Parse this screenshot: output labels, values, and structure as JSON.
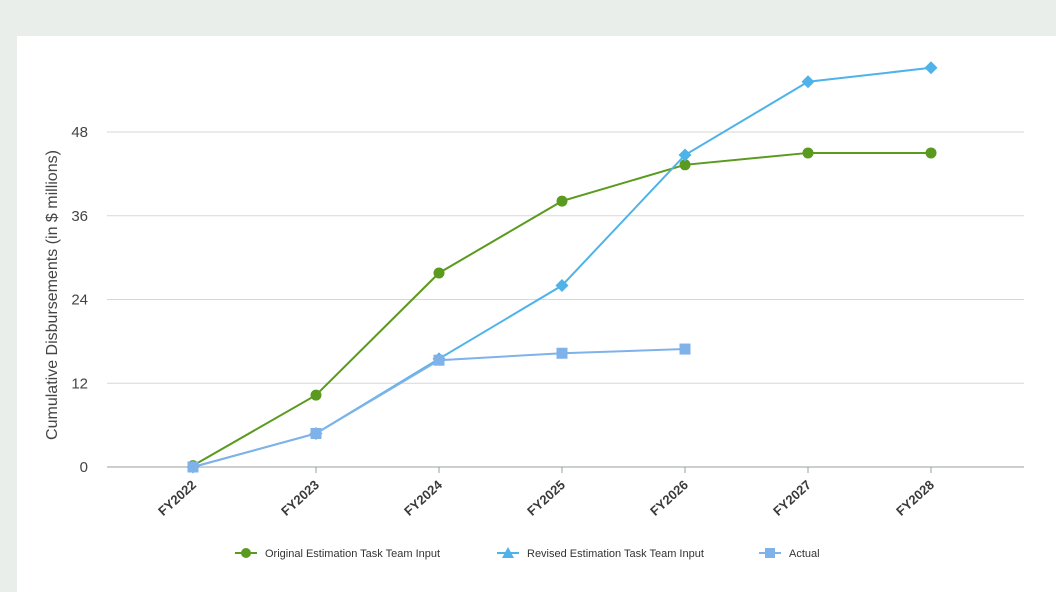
{
  "chart_data": {
    "type": "line",
    "title": "",
    "xlabel": "",
    "ylabel": "Cumulative Disbursements (in $ millions)",
    "categories": [
      "FY2022",
      "FY2023",
      "FY2024",
      "FY2025",
      "FY2026",
      "FY2027",
      "FY2028"
    ],
    "ylim": [
      0,
      60
    ],
    "yticks": [
      0,
      12,
      24,
      36,
      48
    ],
    "grid": true,
    "legend_position": "bottom",
    "series": [
      {
        "name": "Original Estimation Task Team Input",
        "color": "#5a9a1e",
        "marker": "circle",
        "values": [
          0.2,
          10.3,
          27.8,
          38.1,
          43.3,
          45.0,
          45.0
        ]
      },
      {
        "name": "Revised Estimation Task Team Input",
        "color": "#4fb3ea",
        "marker": "diamond",
        "legend_marker": "triangle",
        "values": [
          0,
          4.8,
          15.5,
          26.0,
          44.7,
          55.2,
          57.2
        ]
      },
      {
        "name": "Actual",
        "color": "#7fb2e8",
        "marker": "square",
        "values": [
          0,
          4.8,
          15.3,
          16.3,
          16.9,
          null,
          null
        ]
      }
    ]
  }
}
